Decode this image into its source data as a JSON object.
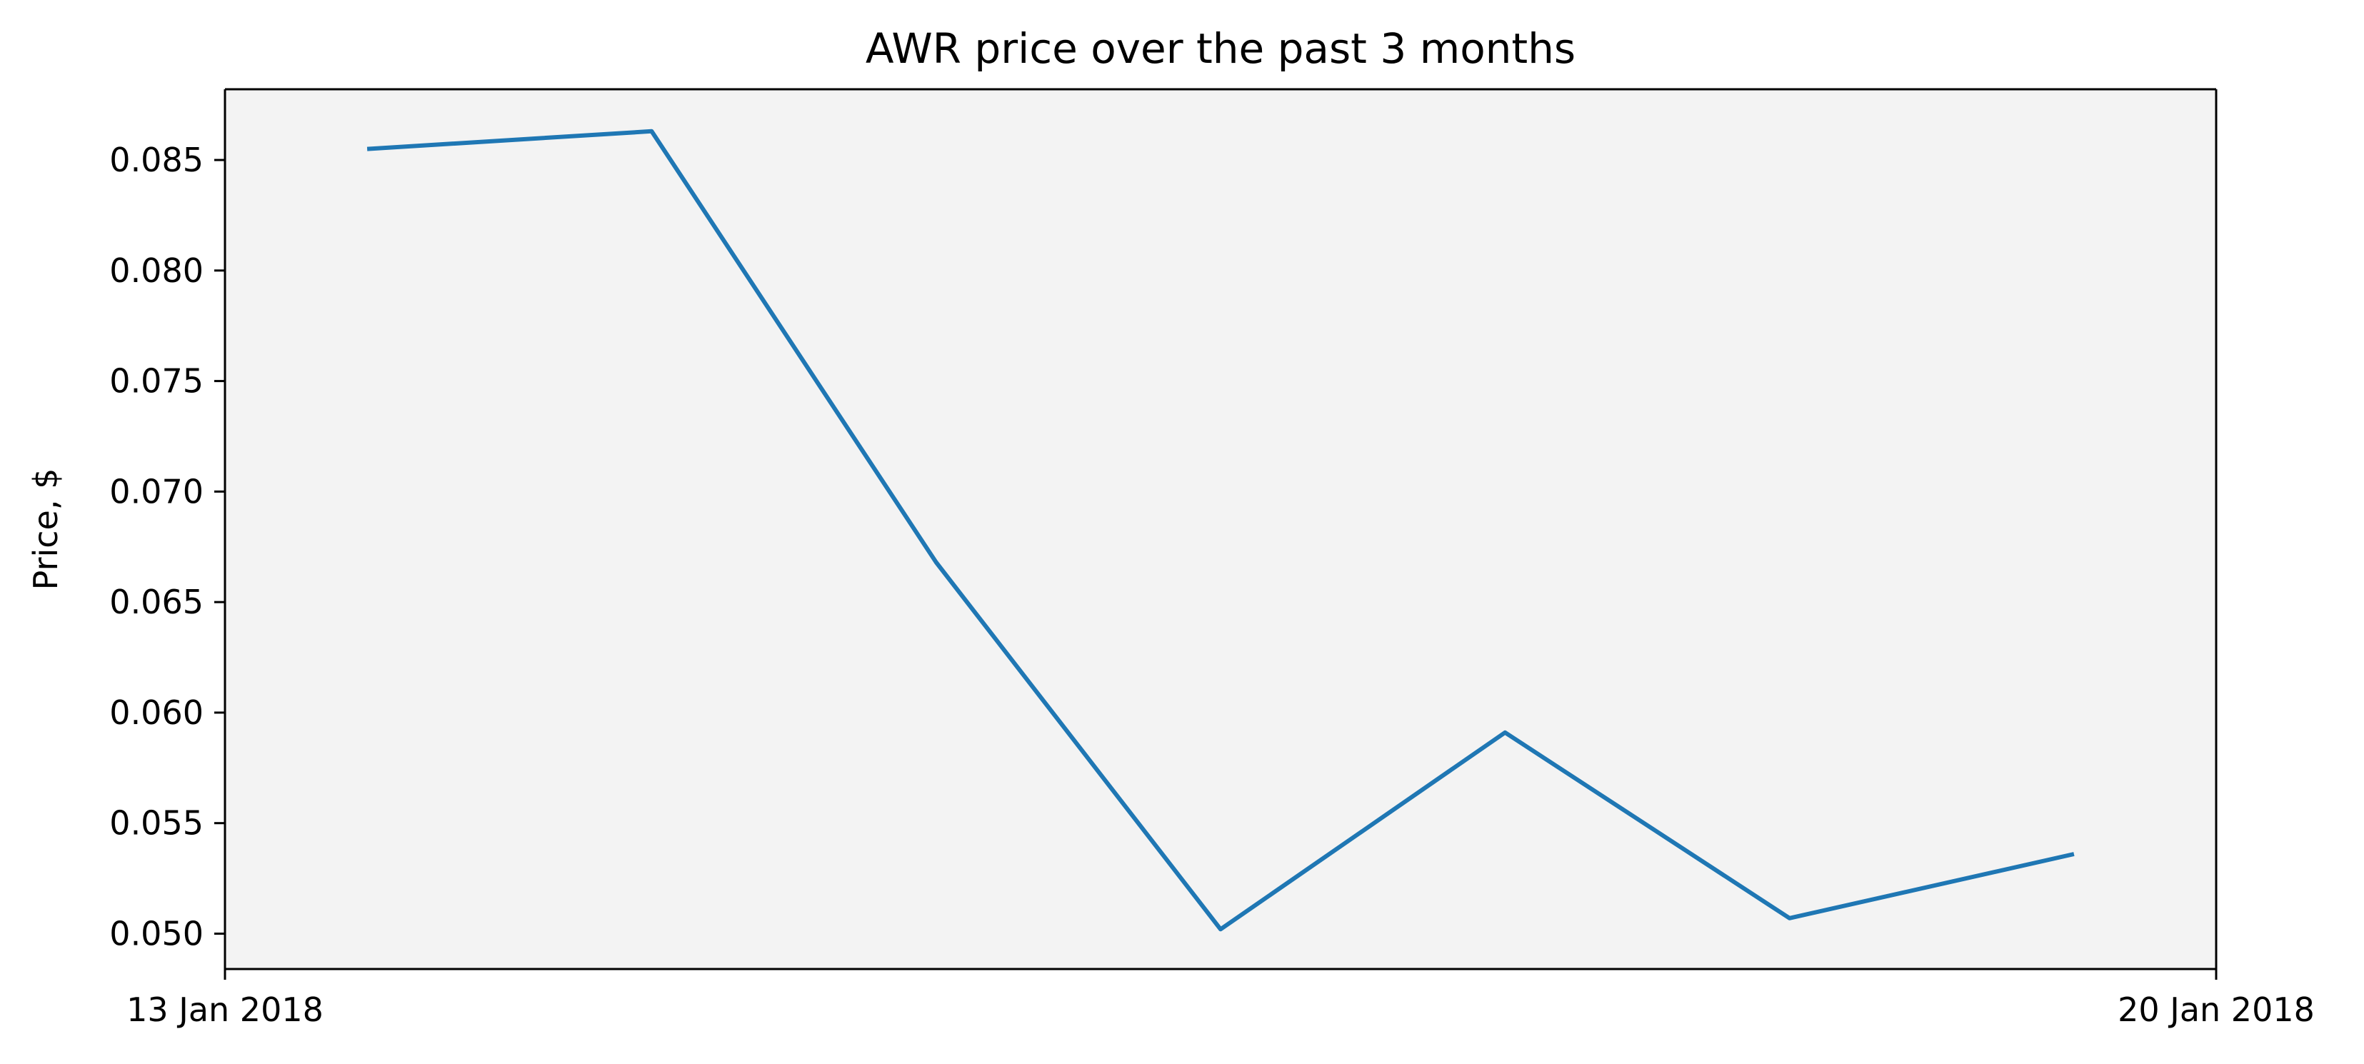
{
  "chart_data": {
    "type": "line",
    "title": "AWR price over the past 3 months",
    "xlabel": "",
    "ylabel": "Price, $",
    "x": [
      "2018-01-13",
      "2018-01-14",
      "2018-01-15",
      "2018-01-16",
      "2018-01-17",
      "2018-01-18",
      "2018-01-19"
    ],
    "y": [
      0.0855,
      0.0863,
      0.0668,
      0.0502,
      0.0591,
      0.0507,
      0.0536
    ],
    "xlim": [
      "2018-01-12T12:00",
      "2018-01-19T12:00"
    ],
    "ylim": [
      0.0484,
      0.0882
    ],
    "x_ticks": [
      {
        "x": "2018-01-12T12:00",
        "label": "13 Jan 2018"
      },
      {
        "x": "2018-01-19T12:00",
        "label": "20 Jan 2018"
      }
    ],
    "y_ticks": [
      {
        "value": 0.05,
        "label": "0.050"
      },
      {
        "value": 0.055,
        "label": "0.055"
      },
      {
        "value": 0.06,
        "label": "0.060"
      },
      {
        "value": 0.065,
        "label": "0.065"
      },
      {
        "value": 0.07,
        "label": "0.070"
      },
      {
        "value": 0.075,
        "label": "0.075"
      },
      {
        "value": 0.08,
        "label": "0.080"
      },
      {
        "value": 0.085,
        "label": "0.085"
      }
    ],
    "grid": false,
    "legend": "none",
    "colors": {
      "line": "#1f77b4",
      "plot_background": "#f3f3f3",
      "page_background": "#ffffff"
    }
  }
}
